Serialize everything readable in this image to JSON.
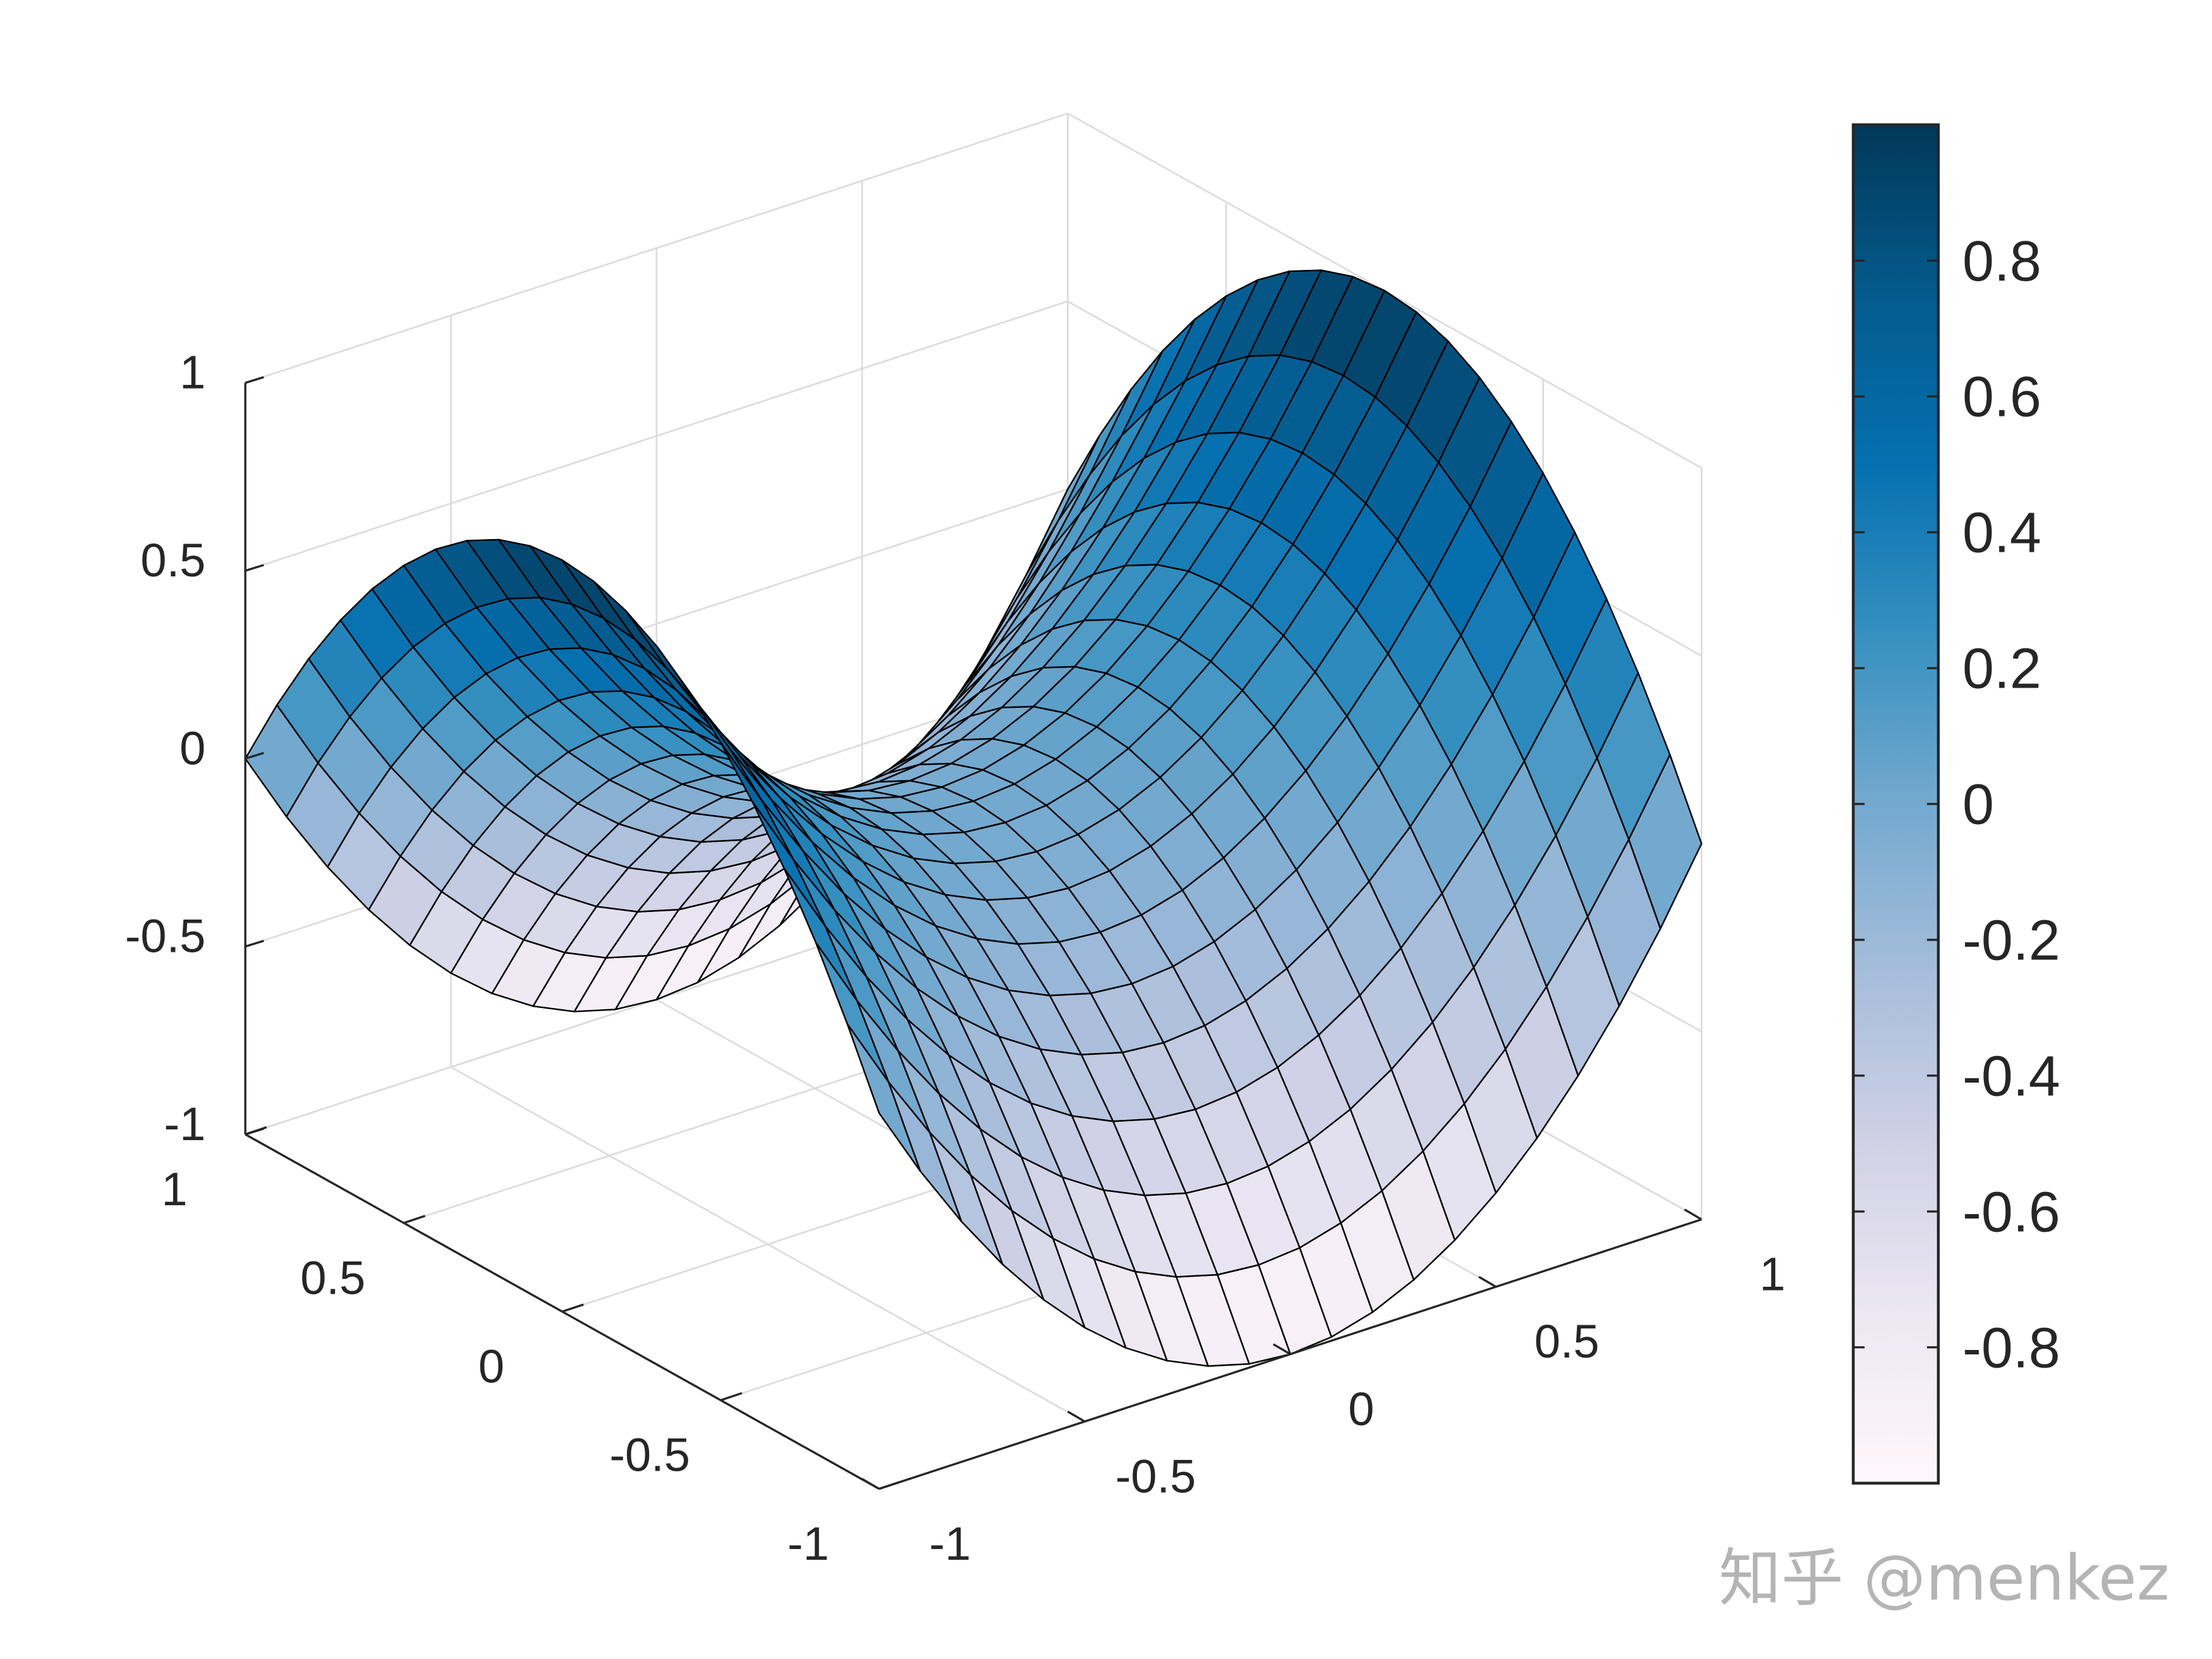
{
  "chart_data": {
    "type": "surface",
    "title": "",
    "xlabel": "",
    "ylabel": "",
    "zlabel": "",
    "x": [
      -1,
      -0.9,
      -0.8,
      -0.7,
      -0.6,
      -0.5,
      -0.4,
      -0.3,
      -0.2,
      -0.1,
      0,
      0.1,
      0.2,
      0.3,
      0.4,
      0.5,
      0.6,
      0.7,
      0.8,
      0.9,
      1
    ],
    "y": [
      -1,
      -0.9,
      -0.8,
      -0.7,
      -0.6,
      -0.5,
      -0.4,
      -0.3,
      -0.2,
      -0.1,
      0,
      0.1,
      0.2,
      0.3,
      0.4,
      0.5,
      0.6,
      0.7,
      0.8,
      0.9,
      1
    ],
    "z": [
      [
        0,
        -0.19,
        -0.36,
        -0.51,
        -0.64,
        -0.75,
        -0.84,
        -0.91,
        -0.96,
        -0.99,
        -1,
        -0.99,
        -0.96,
        -0.91,
        -0.84,
        -0.75,
        -0.64,
        -0.51,
        -0.36,
        -0.19,
        0
      ],
      [
        0.19,
        0,
        -0.17,
        -0.32,
        -0.45,
        -0.56,
        -0.65,
        -0.72,
        -0.77,
        -0.8,
        -0.81,
        -0.8,
        -0.77,
        -0.72,
        -0.65,
        -0.56,
        -0.45,
        -0.32,
        -0.17,
        0,
        0.19
      ],
      [
        0.36,
        0.17,
        0,
        -0.15,
        -0.28,
        -0.39,
        -0.48,
        -0.55,
        -0.6,
        -0.63,
        -0.64,
        -0.63,
        -0.6,
        -0.55,
        -0.48,
        -0.39,
        -0.28,
        -0.15,
        0,
        0.17,
        0.36
      ],
      [
        0.51,
        0.32,
        0.15,
        0,
        -0.13,
        -0.24,
        -0.33,
        -0.4,
        -0.45,
        -0.48,
        -0.49,
        -0.48,
        -0.45,
        -0.4,
        -0.33,
        -0.24,
        -0.13,
        0,
        0.15,
        0.32,
        0.51
      ],
      [
        0.64,
        0.45,
        0.28,
        0.13,
        0,
        -0.11,
        -0.2,
        -0.27,
        -0.32,
        -0.35,
        -0.36,
        -0.35,
        -0.32,
        -0.27,
        -0.2,
        -0.11,
        0,
        0.13,
        0.28,
        0.45,
        0.64
      ],
      [
        0.75,
        0.56,
        0.39,
        0.24,
        0.11,
        0,
        -0.09,
        -0.16,
        -0.21,
        -0.24,
        -0.25,
        -0.24,
        -0.21,
        -0.16,
        -0.09,
        0,
        0.11,
        0.24,
        0.39,
        0.56,
        0.75
      ],
      [
        0.84,
        0.65,
        0.48,
        0.33,
        0.2,
        0.09,
        0,
        -0.07,
        -0.12,
        -0.15,
        -0.16,
        -0.15,
        -0.12,
        -0.07,
        0,
        0.09,
        0.2,
        0.33,
        0.48,
        0.65,
        0.84
      ],
      [
        0.91,
        0.72,
        0.55,
        0.4,
        0.27,
        0.16,
        0.07,
        0,
        -0.05,
        -0.08,
        -0.09,
        -0.08,
        -0.05,
        0,
        0.07,
        0.16,
        0.27,
        0.4,
        0.55,
        0.72,
        0.91
      ],
      [
        0.96,
        0.77,
        0.6,
        0.45,
        0.32,
        0.21,
        0.12,
        0.05,
        0,
        -0.03,
        -0.04,
        -0.03,
        0,
        0.05,
        0.12,
        0.21,
        0.32,
        0.45,
        0.6,
        0.77,
        0.96
      ],
      [
        0.99,
        0.8,
        0.63,
        0.48,
        0.35,
        0.24,
        0.15,
        0.08,
        0.03,
        0,
        -0.01,
        0,
        0.03,
        0.08,
        0.15,
        0.24,
        0.35,
        0.48,
        0.63,
        0.8,
        0.99
      ],
      [
        1,
        0.81,
        0.64,
        0.49,
        0.36,
        0.25,
        0.16,
        0.09,
        0.04,
        0.01,
        0,
        0.01,
        0.04,
        0.09,
        0.16,
        0.25,
        0.36,
        0.49,
        0.64,
        0.81,
        1
      ],
      [
        0.99,
        0.8,
        0.63,
        0.48,
        0.35,
        0.24,
        0.15,
        0.08,
        0.03,
        0,
        -0.01,
        0,
        0.03,
        0.08,
        0.15,
        0.24,
        0.35,
        0.48,
        0.63,
        0.8,
        0.99
      ],
      [
        0.96,
        0.77,
        0.6,
        0.45,
        0.32,
        0.21,
        0.12,
        0.05,
        0,
        -0.03,
        -0.04,
        -0.03,
        0,
        0.05,
        0.12,
        0.21,
        0.32,
        0.45,
        0.6,
        0.77,
        0.96
      ],
      [
        0.91,
        0.72,
        0.55,
        0.4,
        0.27,
        0.16,
        0.07,
        0,
        -0.05,
        -0.08,
        -0.09,
        -0.08,
        -0.05,
        0,
        0.07,
        0.16,
        0.27,
        0.4,
        0.55,
        0.72,
        0.91
      ],
      [
        0.84,
        0.65,
        0.48,
        0.33,
        0.2,
        0.09,
        0,
        -0.07,
        -0.12,
        -0.15,
        -0.16,
        -0.15,
        -0.12,
        -0.07,
        0,
        0.09,
        0.2,
        0.33,
        0.48,
        0.65,
        0.84
      ],
      [
        0.75,
        0.56,
        0.39,
        0.24,
        0.11,
        0,
        -0.09,
        -0.16,
        -0.21,
        -0.24,
        -0.25,
        -0.24,
        -0.21,
        -0.16,
        -0.09,
        0,
        0.11,
        0.24,
        0.39,
        0.56,
        0.75
      ],
      [
        0.64,
        0.45,
        0.28,
        0.13,
        0,
        -0.11,
        -0.2,
        -0.27,
        -0.32,
        -0.35,
        -0.36,
        -0.35,
        -0.32,
        -0.27,
        -0.2,
        -0.11,
        0,
        0.13,
        0.28,
        0.45,
        0.64
      ],
      [
        0.51,
        0.32,
        0.15,
        0,
        -0.13,
        -0.24,
        -0.33,
        -0.4,
        -0.45,
        -0.48,
        -0.49,
        -0.48,
        -0.45,
        -0.4,
        -0.33,
        -0.24,
        -0.13,
        0,
        0.15,
        0.32,
        0.51
      ],
      [
        0.36,
        0.17,
        0,
        -0.15,
        -0.28,
        -0.39,
        -0.48,
        -0.55,
        -0.6,
        -0.63,
        -0.64,
        -0.63,
        -0.6,
        -0.55,
        -0.48,
        -0.39,
        -0.28,
        -0.15,
        0,
        0.17,
        0.36
      ],
      [
        0.19,
        0,
        -0.17,
        -0.32,
        -0.45,
        -0.56,
        -0.65,
        -0.72,
        -0.77,
        -0.8,
        -0.81,
        -0.8,
        -0.77,
        -0.72,
        -0.65,
        -0.56,
        -0.45,
        -0.32,
        -0.17,
        0,
        0.19
      ],
      [
        0,
        -0.19,
        -0.36,
        -0.51,
        -0.64,
        -0.75,
        -0.84,
        -0.91,
        -0.96,
        -0.99,
        -1,
        -0.99,
        -0.96,
        -0.91,
        -0.84,
        -0.75,
        -0.64,
        -0.51,
        -0.36,
        -0.19,
        0
      ]
    ],
    "xlim": [
      -1,
      1
    ],
    "ylim": [
      -1,
      1
    ],
    "zlim": [
      -1,
      1
    ],
    "x_ticks": [
      -1,
      -0.5,
      0,
      0.5,
      1
    ],
    "x_tick_labels": [
      "-1",
      "-0.5",
      "0",
      "0.5",
      "1"
    ],
    "y_ticks": [
      -1,
      -0.5,
      0,
      0.5,
      1
    ],
    "y_tick_labels": [
      "-1",
      "-0.5",
      "0",
      "0.5",
      "1"
    ],
    "z_ticks": [
      -1,
      -0.5,
      0,
      0.5,
      1
    ],
    "z_tick_labels": [
      "-1",
      "-0.5",
      "0",
      "0.5",
      "1"
    ],
    "grid": true,
    "view": "3d",
    "edge_color": "#000000",
    "colorbar": {
      "location": "right",
      "clim": [
        -1,
        1
      ],
      "ticks": [
        -0.8,
        -0.6,
        -0.4,
        -0.2,
        0,
        0.2,
        0.4,
        0.6,
        0.8
      ],
      "tick_labels": [
        "-0.8",
        "-0.6",
        "-0.4",
        "-0.2",
        "0",
        "0.2",
        "0.4",
        "0.6",
        "0.8"
      ],
      "colormap": [
        "#fff7fb",
        "#ece7f2",
        "#d0d1e6",
        "#a6bddb",
        "#74a9cf",
        "#3690c0",
        "#0570b0",
        "#045a8d",
        "#023858"
      ]
    }
  },
  "watermark": "知乎 @menkez"
}
